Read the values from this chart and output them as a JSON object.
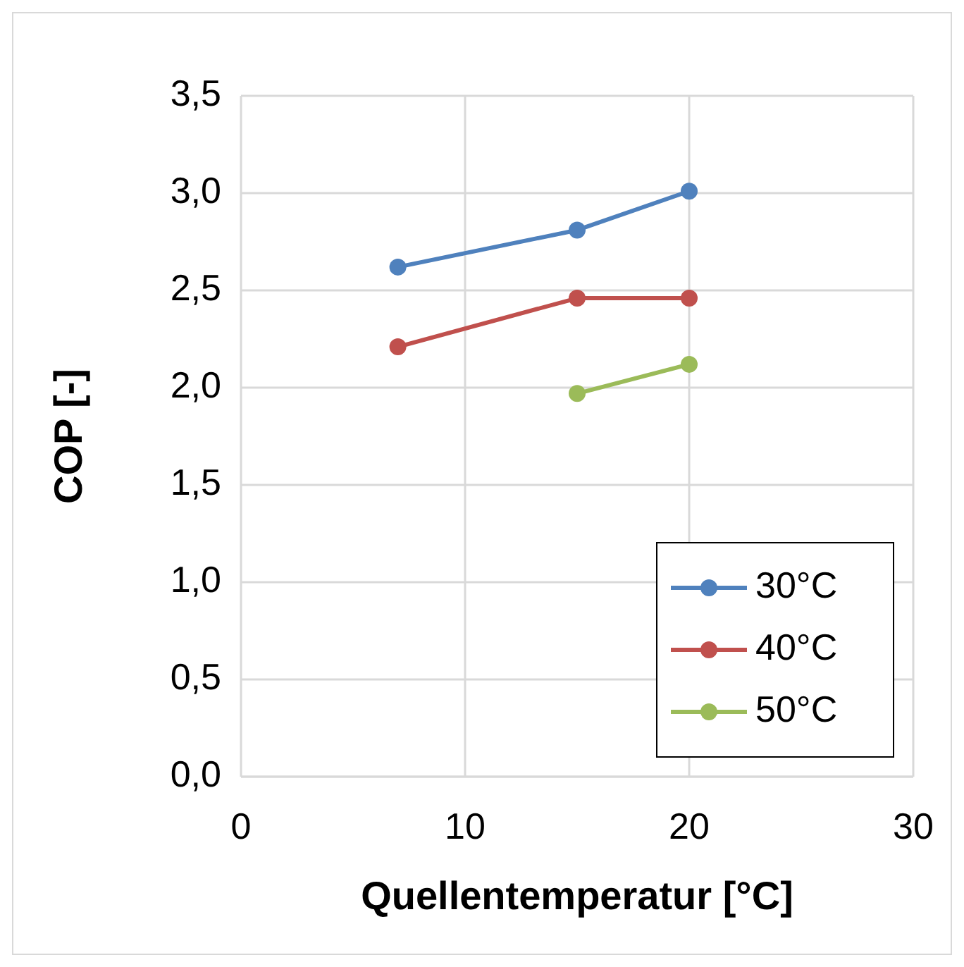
{
  "chart_data": {
    "type": "line",
    "xlabel": "Quellentemperatur [°C]",
    "ylabel": "COP [-]",
    "xlim": [
      0,
      30
    ],
    "xticks": [
      0,
      10,
      20,
      30
    ],
    "ylim": [
      0,
      3.5
    ],
    "yticks": [
      {
        "value": 0,
        "label": "0,0"
      },
      {
        "value": 0.5,
        "label": "0,5"
      },
      {
        "value": 1,
        "label": "1,0"
      },
      {
        "value": 1.5,
        "label": "1,5"
      },
      {
        "value": 2,
        "label": "2,0"
      },
      {
        "value": 2.5,
        "label": "2,5"
      },
      {
        "value": 3,
        "label": "3,0"
      },
      {
        "value": 3.5,
        "label": "3,5"
      }
    ],
    "grid": true,
    "legend": "bottom right",
    "marker": "circle",
    "line_style": "solid",
    "series": [
      {
        "name": "30°C",
        "color": "#4f81bd",
        "x": [
          7,
          15,
          20
        ],
        "values": [
          2.62,
          2.81,
          3.01
        ]
      },
      {
        "name": "40°C",
        "color": "#c0504d",
        "x": [
          7,
          15,
          20
        ],
        "values": [
          2.21,
          2.46,
          2.46
        ]
      },
      {
        "name": "50°C",
        "color": "#9bbb59",
        "x": [
          15,
          20
        ],
        "values": [
          1.97,
          2.12
        ]
      }
    ]
  }
}
